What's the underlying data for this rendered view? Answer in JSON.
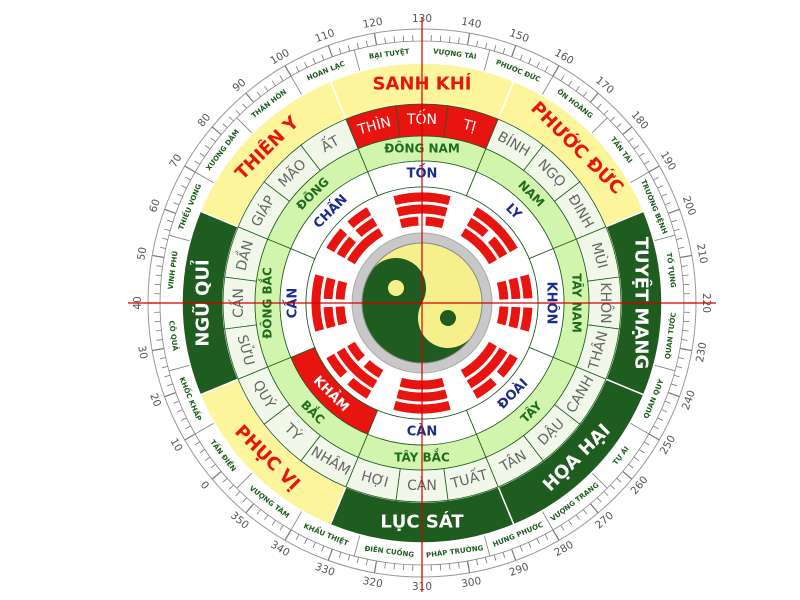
{
  "degree_labels": [
    0,
    10,
    20,
    30,
    40,
    50,
    60,
    70,
    80,
    90,
    100,
    110,
    120,
    130,
    140,
    150,
    160,
    170,
    180,
    190,
    200,
    210,
    220,
    230,
    240,
    250,
    260,
    270,
    280,
    290,
    300,
    310,
    320,
    330,
    340,
    350
  ],
  "stars": [
    "BẠI TUYỆT",
    "VƯỢNG TÀI",
    "PHƯỚC ĐỨC",
    "ÔN HOÀNG",
    "TẤN TÀI",
    "TRƯỜNG BỆNH",
    "TỐ TỤNG",
    "QUAN TƯỚC",
    "QUAN QUÝ",
    "TỰ ÁI",
    "VƯỢNG TRANG",
    "HƯNG PHƯỚC",
    "PHÁP TRƯỜNG",
    "ĐIÊN CUỒNG",
    "KHẨU THIỆT",
    "VƯỢNG TÀM",
    "TẤN ĐIỀN",
    "KHỐC KHẤP",
    "CÔ QUẢ",
    "VINH PHÚ",
    "THIẾU VONG",
    "XƯƠNG DÂM",
    "THÂN HÔN",
    "HOAN LẠC"
  ],
  "sectors": [
    "SANH KHÍ",
    "PHƯỚC ĐỨC",
    "TUYỆT MẠNG",
    "HỌA HẠI",
    "LỤC SÁT",
    "PHỤC VỊ",
    "NGŨ QUỈ",
    "THIÊN Y"
  ],
  "mountains": [
    "THÌN",
    "TỐN",
    "TỊ",
    "BÍNH",
    "NGỌ",
    "ĐINH",
    "MÙI",
    "KHÔN",
    "THÂN",
    "CANH",
    "DẬU",
    "TÂN",
    "TUẤT",
    "CÀN",
    "HỢI",
    "NHÂM",
    "TÝ",
    "QUÝ",
    "SỬU",
    "CẤN",
    "DẦN",
    "GIÁP",
    "MÃO",
    "ẤT"
  ],
  "directions": [
    "ĐÔNG NAM",
    "NAM",
    "TÂY NAM",
    "TÂY",
    "TÂY BẮC",
    "BẮC",
    "ĐÔNG BẮC",
    "ĐÔNG"
  ],
  "trigrams": [
    "TỐN",
    "LY",
    "KHÔN",
    "ĐOÀI",
    "CÀN",
    "KHẢM",
    "CẤN",
    "CHẤN"
  ]
}
